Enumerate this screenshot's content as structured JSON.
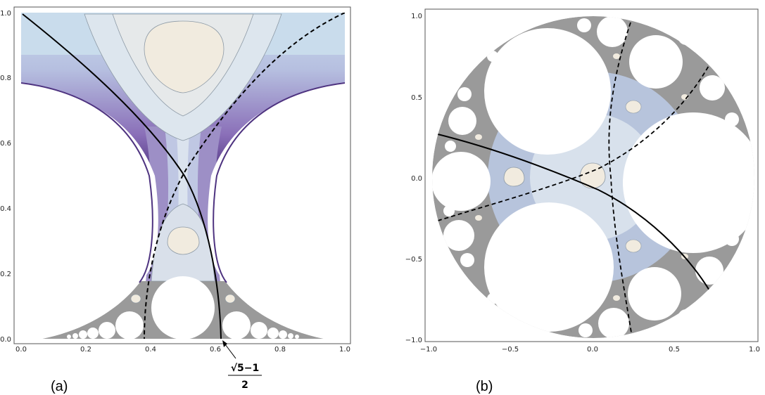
{
  "panel_a": {
    "label": "(a)",
    "x_ticks": [
      "0.0",
      "0.2",
      "0.4",
      "0.6",
      "0.8",
      "1.0"
    ],
    "y_ticks": [
      "0.0",
      "0.2",
      "0.4",
      "0.6",
      "0.8",
      "1.0"
    ],
    "annotation": {
      "numerator": "√5−1",
      "denominator": "2"
    }
  },
  "panel_b": {
    "label": "(b)",
    "x_ticks": [
      "−1.0",
      "−0.5",
      "0.0",
      "0.5",
      "1.0"
    ],
    "y_ticks": [
      "1.0",
      "0.5",
      "0.0",
      "−0.5",
      "−1.0"
    ]
  },
  "colors": {
    "light_center": "#f1ebdf",
    "light_blue": "#c9dcec",
    "purple": "#5a3d8a",
    "gray": "#8c8c8c",
    "curve": "#000000"
  }
}
